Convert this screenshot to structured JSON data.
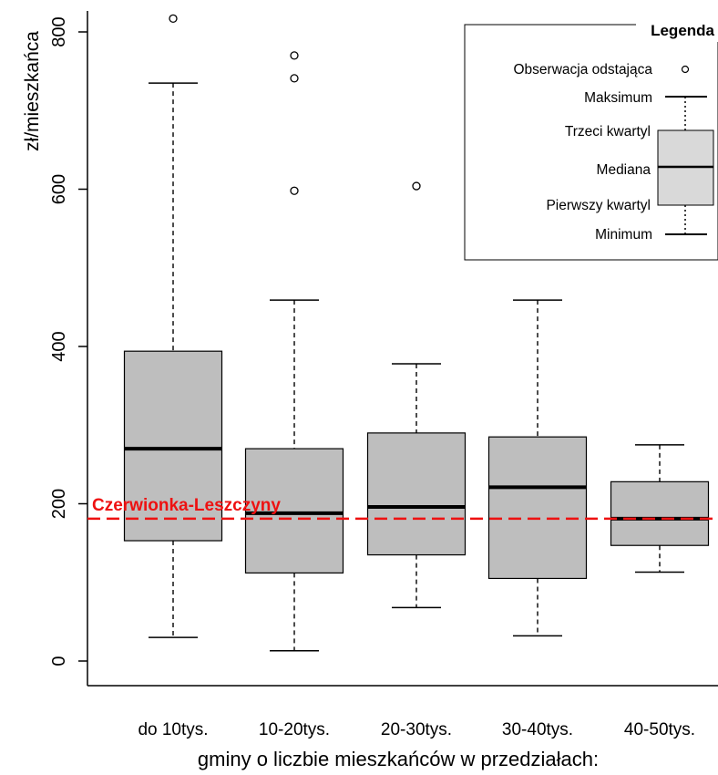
{
  "chart_data": {
    "type": "boxplot",
    "title": "",
    "xlabel": "gminy o liczbie mieszkańców w przedziałach:",
    "ylabel": "zł/mieszkańca",
    "ylim": [
      0,
      820
    ],
    "yticks": [
      0,
      200,
      400,
      600,
      800
    ],
    "grid": false,
    "categories": [
      "do 10tys.",
      "10-20tys.",
      "20-30tys.",
      "30-40tys.",
      "40-50tys."
    ],
    "boxes": [
      {
        "min": 30,
        "q1": 153,
        "median": 270,
        "q3": 394,
        "max": 735,
        "outliers": [
          817
        ]
      },
      {
        "min": 13,
        "q1": 112,
        "median": 188,
        "q3": 270,
        "max": 459,
        "outliers": [
          770,
          741,
          598
        ]
      },
      {
        "min": 68,
        "q1": 135,
        "median": 196,
        "q3": 290,
        "max": 378,
        "outliers": [
          604
        ]
      },
      {
        "min": 32,
        "q1": 105,
        "median": 221,
        "q3": 285,
        "max": 459,
        "outliers": []
      },
      {
        "min": 113,
        "q1": 147,
        "median": 181,
        "q3": 228,
        "max": 275,
        "outliers": []
      }
    ],
    "reference_line": {
      "label": "Czerwionka-Leszczyny",
      "value": 181,
      "color": "#ee1111"
    },
    "box_fill": "#bebebe",
    "legend": {
      "title": "Legenda",
      "position": "top-right",
      "entries": {
        "outlier": "Obserwacja odstająca",
        "max": "Maksimum",
        "q3": "Trzeci kwartyl",
        "median": "Mediana",
        "q1": "Pierwszy kwartyl",
        "min": "Minimum"
      },
      "box_fill": "#d9d9d9"
    }
  }
}
